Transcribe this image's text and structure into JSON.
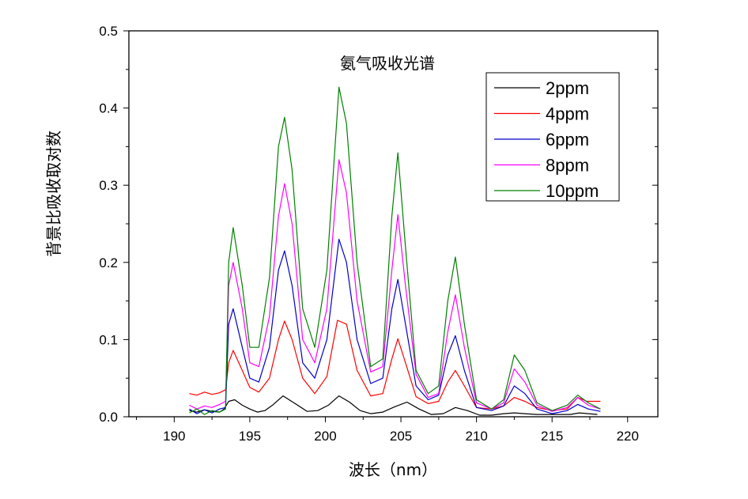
{
  "chart_data": {
    "type": "line",
    "title": "氨气吸收光谱",
    "xlabel": "波长（nm）",
    "ylabel": "背景比吸收取对数",
    "xlim": [
      187,
      222
    ],
    "ylim": [
      0,
      0.5
    ],
    "xticks": [
      "190",
      "195",
      "200",
      "205",
      "210",
      "215",
      "220"
    ],
    "yticks": [
      "0.0",
      "0.1",
      "0.2",
      "0.3",
      "0.4",
      "0.5"
    ],
    "grid": false,
    "legend_position": "top-right",
    "series": [
      {
        "name": "2ppm",
        "color": "#000000",
        "x": [
          191,
          191.5,
          192,
          192.5,
          193,
          193.3,
          193.6,
          194,
          194.5,
          195,
          195.5,
          196,
          196.5,
          197.2,
          198,
          198.8,
          199.5,
          200.2,
          200.9,
          201.6,
          202.3,
          203,
          203.8,
          204.6,
          205.4,
          206.2,
          207,
          207.8,
          208.6,
          209.4,
          210.2,
          211,
          211.8,
          212.5,
          213.2,
          214,
          214.8,
          215.6,
          216.2,
          216.8,
          217.4,
          218
        ],
        "y": [
          0.008,
          0.006,
          0.009,
          0.007,
          0.006,
          0.01,
          0.02,
          0.022,
          0.015,
          0.01,
          0.006,
          0.008,
          0.015,
          0.027,
          0.017,
          0.007,
          0.008,
          0.015,
          0.027,
          0.019,
          0.008,
          0.004,
          0.006,
          0.013,
          0.019,
          0.01,
          0.003,
          0.004,
          0.012,
          0.008,
          0.002,
          0.002,
          0.004,
          0.005,
          0.004,
          0.003,
          0.003,
          0.003,
          0.003,
          0.005,
          0.004,
          0.003
        ]
      },
      {
        "name": "4ppm",
        "color": "#ff0000",
        "x": [
          191,
          191.5,
          192,
          192.5,
          193,
          193.4,
          193.6,
          193.9,
          194.5,
          195,
          195.6,
          196.3,
          196.9,
          197.3,
          197.8,
          198.5,
          199.3,
          200.1,
          200.8,
          201.4,
          202.1,
          203,
          203.8,
          204.4,
          204.8,
          205.3,
          206,
          206.8,
          207.5,
          208.1,
          208.6,
          209.2,
          210,
          211,
          211.8,
          212.5,
          213.2,
          214,
          215,
          216,
          216.7,
          217.3,
          218.2
        ],
        "y": [
          0.03,
          0.028,
          0.032,
          0.029,
          0.031,
          0.035,
          0.07,
          0.086,
          0.06,
          0.038,
          0.032,
          0.05,
          0.1,
          0.124,
          0.1,
          0.05,
          0.03,
          0.052,
          0.125,
          0.12,
          0.06,
          0.027,
          0.03,
          0.075,
          0.101,
          0.07,
          0.026,
          0.017,
          0.02,
          0.045,
          0.06,
          0.04,
          0.012,
          0.01,
          0.014,
          0.025,
          0.02,
          0.012,
          0.008,
          0.01,
          0.025,
          0.02,
          0.02
        ]
      },
      {
        "name": "6ppm",
        "color": "#0000cc",
        "x": [
          191,
          191.5,
          192,
          192.5,
          193,
          193.4,
          193.6,
          193.9,
          194.5,
          195,
          195.6,
          196.3,
          196.9,
          197.3,
          197.8,
          198.5,
          199.3,
          200.1,
          200.9,
          201.4,
          202.1,
          203,
          203.8,
          204.4,
          204.8,
          205.3,
          206,
          206.8,
          207.5,
          208.1,
          208.6,
          209.2,
          210,
          211,
          211.8,
          212.5,
          213.2,
          214,
          215,
          216,
          216.7,
          217.4,
          218.2
        ],
        "y": [
          0.01,
          0.004,
          0.009,
          0.005,
          0.01,
          0.012,
          0.12,
          0.14,
          0.09,
          0.05,
          0.045,
          0.09,
          0.19,
          0.215,
          0.17,
          0.07,
          0.05,
          0.1,
          0.23,
          0.2,
          0.1,
          0.043,
          0.05,
          0.14,
          0.178,
          0.12,
          0.04,
          0.022,
          0.028,
          0.08,
          0.105,
          0.06,
          0.012,
          0.008,
          0.014,
          0.04,
          0.03,
          0.01,
          0.004,
          0.008,
          0.016,
          0.01,
          0.007
        ]
      },
      {
        "name": "8ppm",
        "color": "#ff00ff",
        "x": [
          191,
          191.5,
          192,
          192.5,
          193,
          193.4,
          193.6,
          193.9,
          194.5,
          195,
          195.6,
          196.3,
          196.9,
          197.3,
          197.8,
          198.5,
          199.3,
          200.1,
          200.9,
          201.4,
          202.1,
          203,
          203.8,
          204.4,
          204.8,
          205.3,
          206,
          206.8,
          207.5,
          208.1,
          208.6,
          209.2,
          210,
          211,
          211.8,
          212.5,
          213.2,
          214,
          215,
          216,
          216.7,
          217.4,
          218.2
        ],
        "y": [
          0.015,
          0.01,
          0.014,
          0.012,
          0.016,
          0.02,
          0.17,
          0.2,
          0.14,
          0.07,
          0.065,
          0.13,
          0.26,
          0.302,
          0.25,
          0.1,
          0.07,
          0.14,
          0.333,
          0.29,
          0.15,
          0.058,
          0.065,
          0.19,
          0.262,
          0.17,
          0.055,
          0.025,
          0.03,
          0.11,
          0.158,
          0.09,
          0.018,
          0.01,
          0.018,
          0.062,
          0.045,
          0.015,
          0.007,
          0.012,
          0.025,
          0.015,
          0.01
        ]
      },
      {
        "name": "10ppm",
        "color": "#008000",
        "x": [
          191,
          191.5,
          192,
          192.5,
          193,
          193.4,
          193.6,
          193.9,
          194.5,
          195,
          195.6,
          196.3,
          196.9,
          197.3,
          197.8,
          198.5,
          199.3,
          200.1,
          200.9,
          201.4,
          202.1,
          203,
          203.8,
          204.4,
          204.8,
          205.3,
          206,
          206.8,
          207.5,
          208.1,
          208.6,
          209.2,
          210,
          211,
          211.8,
          212.5,
          213.2,
          214,
          215,
          216,
          216.7,
          217.4,
          218.2
        ],
        "y": [
          0.005,
          0.01,
          0.003,
          0.008,
          0.006,
          0.01,
          0.2,
          0.245,
          0.17,
          0.09,
          0.09,
          0.18,
          0.35,
          0.388,
          0.32,
          0.14,
          0.09,
          0.19,
          0.427,
          0.38,
          0.2,
          0.065,
          0.075,
          0.26,
          0.342,
          0.22,
          0.06,
          0.03,
          0.04,
          0.15,
          0.207,
          0.12,
          0.022,
          0.01,
          0.022,
          0.08,
          0.06,
          0.018,
          0.008,
          0.015,
          0.028,
          0.018,
          0.01
        ]
      }
    ]
  }
}
